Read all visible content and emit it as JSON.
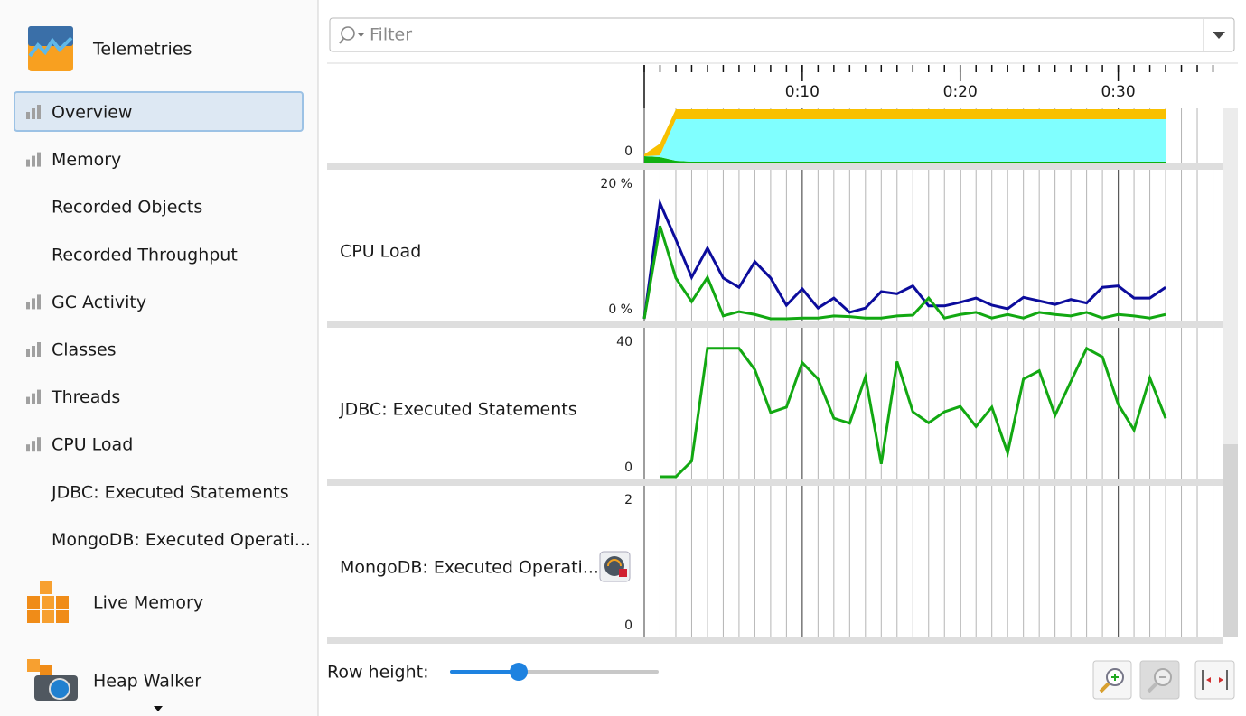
{
  "sidebar": {
    "telemetries": {
      "title": "Telemetries",
      "items": [
        "Overview",
        "Memory",
        "Recorded Objects",
        "Recorded Throughput",
        "GC Activity",
        "Classes",
        "Threads",
        "CPU Load",
        "JDBC: Executed Statements",
        "MongoDB: Executed Operati..."
      ]
    },
    "live_memory": "Live Memory",
    "heap_walker": "Heap Walker"
  },
  "filter_placeholder": "Filter",
  "row_height_label": "Row height:",
  "timeline": {
    "xlim": [
      0,
      36.6
    ],
    "xticks": [
      {
        "value": 10,
        "label": "0:10"
      },
      {
        "value": 20,
        "label": "0:20"
      },
      {
        "value": 30,
        "label": "0:30"
      }
    ],
    "minor_xticks": [
      0,
      1,
      2,
      3,
      4,
      5,
      6,
      7,
      8,
      9,
      10,
      11,
      12,
      13,
      14,
      15,
      16,
      17,
      18,
      19,
      20,
      21,
      22,
      23,
      24,
      25,
      26,
      27,
      28,
      29,
      30,
      31,
      32,
      33,
      34,
      35,
      36
    ]
  },
  "chart_data": [
    {
      "type": "area",
      "stacked": true,
      "ylim": [
        0,
        60
      ],
      "yticks": [
        0
      ],
      "x": [
        0,
        1,
        2,
        3,
        4,
        5,
        6,
        7,
        8,
        9,
        10,
        11,
        12,
        13,
        14,
        15,
        16,
        17,
        18,
        19,
        20,
        21,
        22,
        23,
        24,
        25,
        26,
        27,
        28,
        29,
        30,
        31,
        32,
        33
      ],
      "series": [
        {
          "color": "#10b010",
          "values": [
            7,
            6,
            2,
            1,
            1,
            1,
            1,
            1,
            1,
            1,
            1,
            1,
            1,
            1,
            1,
            1,
            1,
            1,
            1,
            1,
            1,
            1,
            1,
            1,
            1,
            1,
            1,
            1,
            1,
            1,
            1,
            1,
            1,
            1
          ]
        },
        {
          "color": "#80ffff",
          "values": [
            0,
            2,
            46,
            47,
            47,
            47,
            47,
            47,
            47,
            47,
            47,
            47,
            47,
            47,
            47,
            47,
            47,
            47,
            47,
            47,
            47,
            47,
            47,
            47,
            47,
            47,
            47,
            47,
            47,
            47,
            47,
            47,
            47,
            47
          ]
        },
        {
          "color": "#f8c000",
          "values": [
            2,
            13,
            11,
            11,
            11,
            11,
            11,
            11,
            11,
            11,
            11,
            11,
            11,
            11,
            11,
            11,
            11,
            11,
            11,
            11,
            11,
            11,
            11,
            11,
            11,
            11,
            11,
            11,
            11,
            11,
            11,
            11,
            11,
            11
          ]
        }
      ]
    },
    {
      "type": "line",
      "label": "CPU Load",
      "ylim": [
        0,
        20
      ],
      "yticks": [
        {
          "value": 0,
          "label": "0 %"
        },
        {
          "value": 20,
          "label": "20 %"
        }
      ],
      "x": [
        0,
        1,
        2,
        3,
        4,
        5,
        6,
        7,
        8,
        9,
        10,
        11,
        12,
        13,
        14,
        15,
        16,
        17,
        18,
        19,
        20,
        21,
        22,
        23,
        24,
        25,
        26,
        27,
        28,
        29,
        30,
        31,
        32,
        33
      ],
      "series": [
        {
          "color": "#0c0c9c",
          "values": [
            0,
            16.2,
            11.1,
            5.8,
            9.9,
            5.7,
            4.4,
            8.0,
            5.7,
            1.9,
            4.2,
            1.5,
            2.9,
            0.9,
            1.5,
            3.8,
            3.5,
            4.6,
            1.8,
            1.8,
            2.3,
            2.9,
            1.9,
            1.4,
            3.0,
            2.5,
            2.0,
            2.7,
            2.2,
            4.4,
            4.6,
            2.9,
            2.9,
            4.4
          ]
        },
        {
          "color": "#12a812",
          "values": [
            0,
            13.0,
            5.7,
            2.4,
            5.8,
            0.4,
            1.0,
            0.6,
            0,
            0,
            0.1,
            0.1,
            0.4,
            0.3,
            0.1,
            0.1,
            0.4,
            0.5,
            2.9,
            0.1,
            0.6,
            0.9,
            0.1,
            0.6,
            0.1,
            0.9,
            0.6,
            0.4,
            0.9,
            0.1,
            0.6,
            0.4,
            0.1,
            0.6
          ]
        }
      ]
    },
    {
      "type": "line",
      "label": "JDBC: Executed Statements",
      "ylim": [
        0,
        40
      ],
      "yticks": [
        0,
        40
      ],
      "x": [
        0,
        1,
        2,
        3,
        4,
        5,
        6,
        7,
        8,
        9,
        10,
        11,
        12,
        13,
        14,
        15,
        16,
        17,
        18,
        19,
        20,
        21,
        22,
        23,
        24,
        25,
        26,
        27,
        28,
        29,
        30,
        31,
        32,
        33
      ],
      "series": [
        {
          "color": "#12a812",
          "values": [
            null,
            0,
            0,
            4.4,
            36,
            36,
            36,
            30,
            18,
            19.5,
            32,
            27.4,
            16.4,
            15,
            28,
            3.6,
            32.3,
            18.2,
            15.1,
            18.2,
            19.7,
            14.1,
            19.5,
            6.7,
            27.4,
            29.7,
            17.2,
            26.7,
            36,
            33.6,
            20.3,
            13.1,
            27.7,
            16.4
          ]
        }
      ]
    },
    {
      "type": "line",
      "label": "MongoDB: Executed Operati...",
      "ylim": [
        0,
        2
      ],
      "yticks": [
        0,
        2
      ],
      "x": [],
      "series": []
    }
  ]
}
